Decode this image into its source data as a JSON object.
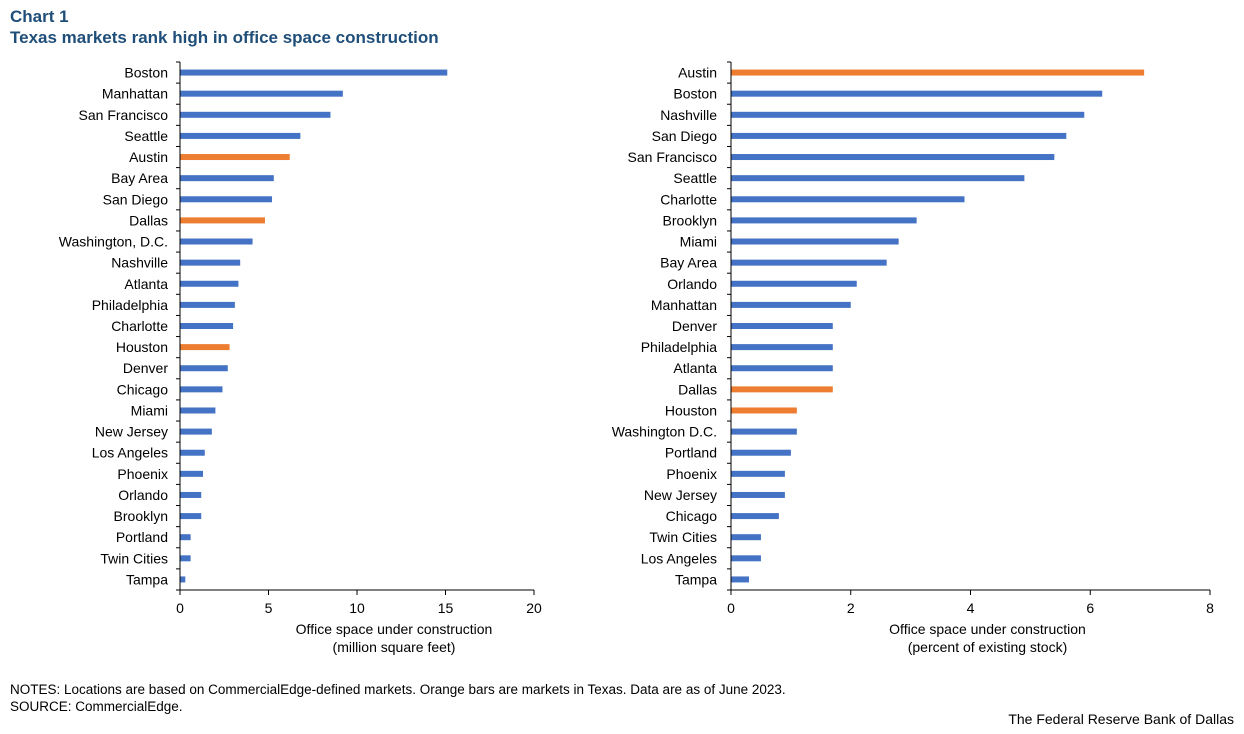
{
  "header": {
    "chart_number": "Chart 1",
    "title": "Texas markets rank high in office space construction"
  },
  "footer": {
    "notes": "NOTES: Locations are based on CommercialEdge-defined markets. Orange bars are markets in Texas. Data are as of June 2023.",
    "source": "SOURCE: CommercialEdge.",
    "credit": "The Federal Reserve Bank of Dallas"
  },
  "colors": {
    "default_bar": "#4472c4",
    "texas_bar": "#ed7d31",
    "title": "#1f4e79",
    "axis": "#000000"
  },
  "chart_data": [
    {
      "type": "bar",
      "orientation": "horizontal",
      "categories": [
        "Boston",
        "Manhattan",
        "San Francisco",
        "Seattle",
        "Austin",
        "Bay Area",
        "San Diego",
        "Dallas",
        "Washington, D.C.",
        "Nashville",
        "Atlanta",
        "Philadelphia",
        "Charlotte",
        "Houston",
        "Denver",
        "Chicago",
        "Miami",
        "New Jersey",
        "Los Angeles",
        "Phoenix",
        "Orlando",
        "Brooklyn",
        "Portland",
        "Twin Cities",
        "Tampa"
      ],
      "values": [
        15.1,
        9.2,
        8.5,
        6.8,
        6.2,
        5.3,
        5.2,
        4.8,
        4.1,
        3.4,
        3.3,
        3.1,
        3.0,
        2.8,
        2.7,
        2.4,
        2.0,
        1.8,
        1.4,
        1.3,
        1.2,
        1.2,
        0.6,
        0.6,
        0.3
      ],
      "highlighted": [
        "Austin",
        "Dallas",
        "Houston"
      ],
      "xlabel": [
        "Office space under  construction",
        "(million square feet)"
      ],
      "xlim": [
        0,
        20
      ],
      "xticks": [
        0,
        5,
        10,
        15,
        20
      ],
      "grid": false
    },
    {
      "type": "bar",
      "orientation": "horizontal",
      "categories": [
        "Austin",
        "Boston",
        "Nashville",
        "San Diego",
        "San Francisco",
        "Seattle",
        "Charlotte",
        "Brooklyn",
        "Miami",
        "Bay Area",
        "Orlando",
        "Manhattan",
        "Denver",
        "Philadelphia",
        "Atlanta",
        "Dallas",
        "Houston",
        "Washington D.C.",
        "Portland",
        "Phoenix",
        "New Jersey",
        "Chicago",
        "Twin Cities",
        "Los Angeles",
        "Tampa"
      ],
      "values": [
        6.9,
        6.2,
        5.9,
        5.6,
        5.4,
        4.9,
        3.9,
        3.1,
        2.8,
        2.6,
        2.1,
        2.0,
        1.7,
        1.7,
        1.7,
        1.7,
        1.1,
        1.1,
        1.0,
        0.9,
        0.9,
        0.8,
        0.5,
        0.5,
        0.3
      ],
      "highlighted": [
        "Austin",
        "Dallas",
        "Houston"
      ],
      "xlabel": [
        "Office space under  construction",
        "(percent of existing stock)"
      ],
      "xlim": [
        0,
        8
      ],
      "xticks": [
        0,
        2,
        4,
        6,
        8
      ],
      "grid": false
    }
  ]
}
